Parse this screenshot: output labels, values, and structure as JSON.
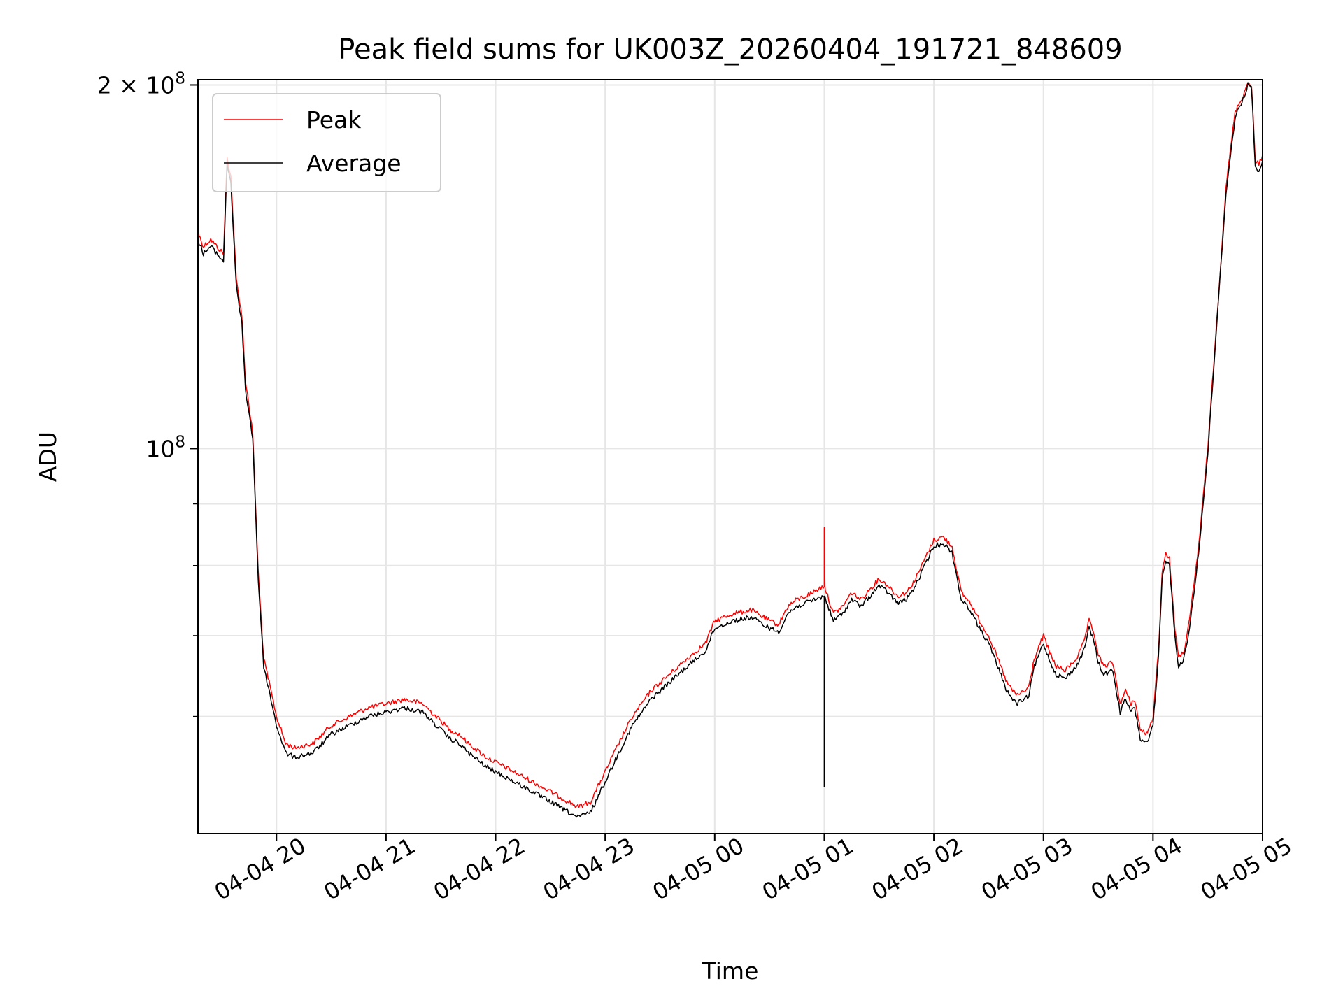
{
  "chart_data": {
    "type": "line",
    "title": "Peak field sums for UK003Z_20260404_191721_848609",
    "xlabel": "Time",
    "ylabel": "ADU",
    "yscale": "log",
    "ylim": [
      48000000,
      202000000
    ],
    "xlim": [
      "2026-04-04 19:17",
      "2026-04-05 05:00"
    ],
    "grid": true,
    "legend_position": "top-left",
    "x_ticks": [
      "04-04 20",
      "04-04 21",
      "04-04 22",
      "04-04 23",
      "04-05 00",
      "04-05 01",
      "04-05 02",
      "04-05 03",
      "04-05 04",
      "04-05 05"
    ],
    "x_tick_values": [
      "2026-04-04 20:00",
      "2026-04-04 21:00",
      "2026-04-04 22:00",
      "2026-04-04 23:00",
      "2026-04-05 00:00",
      "2026-04-05 01:00",
      "2026-04-05 02:00",
      "2026-04-05 03:00",
      "2026-04-05 04:00",
      "2026-04-05 05:00"
    ],
    "y_ticks": [
      {
        "value": 100000000,
        "base": "10",
        "exp": "8",
        "prefix": ""
      },
      {
        "value": 200000000,
        "base": "10",
        "exp": "8",
        "prefix": "2 × "
      }
    ],
    "y_minor_ticks": [
      60000000,
      70000000,
      80000000,
      90000000
    ],
    "series": [
      {
        "name": "Peak",
        "color": "#ff0000",
        "x": [
          "2026-04-04 19:17",
          "2026-04-04 19:20",
          "2026-04-04 19:24",
          "2026-04-04 19:29",
          "2026-04-04 19:31",
          "2026-04-04 19:33",
          "2026-04-04 19:35",
          "2026-04-04 19:38",
          "2026-04-04 19:41",
          "2026-04-04 19:43",
          "2026-04-04 19:47",
          "2026-04-04 19:50",
          "2026-04-04 19:53",
          "2026-04-04 19:56",
          "2026-04-04 20:00",
          "2026-04-04 20:05",
          "2026-04-04 20:10",
          "2026-04-04 20:20",
          "2026-04-04 20:30",
          "2026-04-04 20:35",
          "2026-04-04 20:40",
          "2026-04-04 20:50",
          "2026-04-04 21:00",
          "2026-04-04 21:10",
          "2026-04-04 21:20",
          "2026-04-04 21:30",
          "2026-04-04 21:35",
          "2026-04-04 21:40",
          "2026-04-04 21:45",
          "2026-04-04 21:55",
          "2026-04-04 22:05",
          "2026-04-04 22:15",
          "2026-04-04 22:25",
          "2026-04-04 22:35",
          "2026-04-04 22:45",
          "2026-04-04 22:52",
          "2026-04-04 23:00",
          "2026-04-04 23:05",
          "2026-04-04 23:10",
          "2026-04-04 23:15",
          "2026-04-04 23:25",
          "2026-04-04 23:35",
          "2026-04-04 23:45",
          "2026-04-04 23:55",
          "2026-04-05 00:00",
          "2026-04-05 00:10",
          "2026-04-05 00:20",
          "2026-04-05 00:30",
          "2026-04-05 00:35",
          "2026-04-05 00:40",
          "2026-04-05 00:45",
          "2026-04-05 00:50",
          "2026-04-05 01:00",
          "2026-04-05 01:05",
          "2026-04-05 01:10",
          "2026-04-05 01:15",
          "2026-04-05 01:20",
          "2026-04-05 01:25",
          "2026-04-05 01:30",
          "2026-04-05 01:35",
          "2026-04-05 01:40",
          "2026-04-05 01:45",
          "2026-04-05 01:50",
          "2026-04-05 01:55",
          "2026-04-05 02:00",
          "2026-04-05 02:05",
          "2026-04-05 02:10",
          "2026-04-05 02:15",
          "2026-04-05 02:20",
          "2026-04-05 02:25",
          "2026-04-05 02:30",
          "2026-04-05 02:35",
          "2026-04-05 02:40",
          "2026-04-05 02:45",
          "2026-04-05 02:50",
          "2026-04-05 02:52",
          "2026-04-05 02:55",
          "2026-04-05 03:00",
          "2026-04-05 03:03",
          "2026-04-05 03:07",
          "2026-04-05 03:12",
          "2026-04-05 03:18",
          "2026-04-05 03:22",
          "2026-04-05 03:25",
          "2026-04-05 03:28",
          "2026-04-05 03:30",
          "2026-04-05 03:33",
          "2026-04-05 03:38",
          "2026-04-05 03:40",
          "2026-04-05 03:42",
          "2026-04-05 03:45",
          "2026-04-05 03:48",
          "2026-04-05 03:50",
          "2026-04-05 03:53",
          "2026-04-05 03:57",
          "2026-04-05 04:00",
          "2026-04-05 04:03",
          "2026-04-05 04:05",
          "2026-04-05 04:07",
          "2026-04-05 04:09",
          "2026-04-05 04:12",
          "2026-04-05 04:14",
          "2026-04-05 04:17",
          "2026-04-05 04:20",
          "2026-04-05 04:25",
          "2026-04-05 04:30",
          "2026-04-05 04:35",
          "2026-04-05 04:40",
          "2026-04-05 04:45",
          "2026-04-05 04:50",
          "2026-04-05 04:52",
          "2026-04-05 04:54",
          "2026-04-05 04:56",
          "2026-04-05 04:58",
          "2026-04-05 05:00"
        ],
        "y": [
          151000000,
          147000000,
          149000000,
          146000000,
          145000000,
          174000000,
          168000000,
          138000000,
          129000000,
          114000000,
          103000000,
          79000000,
          67000000,
          64000000,
          60000000,
          57000000,
          56500000,
          57000000,
          59000000,
          59500000,
          60000000,
          61000000,
          61500000,
          62000000,
          61500000,
          59500000,
          58500000,
          58000000,
          57000000,
          55500000,
          54500000,
          53500000,
          52500000,
          51500000,
          50500000,
          51000000,
          54000000,
          56000000,
          58000000,
          60000000,
          63000000,
          65000000,
          67000000,
          69000000,
          72000000,
          73000000,
          73500000,
          72000000,
          71500000,
          74000000,
          75000000,
          75500000,
          77000000,
          73000000,
          74000000,
          76000000,
          75000000,
          76500000,
          78000000,
          77000000,
          75500000,
          76000000,
          78000000,
          81000000,
          84000000,
          84500000,
          83000000,
          76000000,
          74500000,
          72000000,
          70000000,
          67000000,
          64000000,
          62500000,
          63000000,
          63500000,
          67000000,
          70000000,
          68000000,
          66000000,
          65500000,
          67000000,
          69000000,
          72000000,
          70000000,
          67500000,
          66000000,
          66500000,
          64000000,
          61500000,
          63000000,
          61500000,
          62000000,
          58500000,
          58000000,
          60000000,
          68000000,
          79000000,
          82000000,
          81000000,
          71000000,
          67000000,
          68000000,
          72000000,
          83000000,
          100000000,
          128000000,
          165000000,
          190000000,
          197000000,
          201000000,
          200000000,
          173000000,
          172000000,
          175000000
        ]
      },
      {
        "name": "Average",
        "color": "#000000",
        "x": [
          "2026-04-04 19:17",
          "2026-04-04 19:20",
          "2026-04-04 19:24",
          "2026-04-04 19:29",
          "2026-04-04 19:31",
          "2026-04-04 19:33",
          "2026-04-04 19:35",
          "2026-04-04 19:38",
          "2026-04-04 19:41",
          "2026-04-04 19:43",
          "2026-04-04 19:47",
          "2026-04-04 19:50",
          "2026-04-04 19:53",
          "2026-04-04 19:56",
          "2026-04-04 20:00",
          "2026-04-04 20:05",
          "2026-04-04 20:10",
          "2026-04-04 20:20",
          "2026-04-04 20:30",
          "2026-04-04 20:35",
          "2026-04-04 20:40",
          "2026-04-04 20:50",
          "2026-04-04 21:00",
          "2026-04-04 21:10",
          "2026-04-04 21:20",
          "2026-04-04 21:30",
          "2026-04-04 21:35",
          "2026-04-04 21:40",
          "2026-04-04 21:45",
          "2026-04-04 21:55",
          "2026-04-04 22:05",
          "2026-04-04 22:15",
          "2026-04-04 22:25",
          "2026-04-04 22:35",
          "2026-04-04 22:45",
          "2026-04-04 22:52",
          "2026-04-04 23:00",
          "2026-04-04 23:05",
          "2026-04-04 23:10",
          "2026-04-04 23:15",
          "2026-04-04 23:25",
          "2026-04-04 23:35",
          "2026-04-04 23:45",
          "2026-04-04 23:55",
          "2026-04-05 00:00",
          "2026-04-05 00:10",
          "2026-04-05 00:20",
          "2026-04-05 00:30",
          "2026-04-05 00:35",
          "2026-04-05 00:40",
          "2026-04-05 00:45",
          "2026-04-05 00:50",
          "2026-04-05 01:00",
          "2026-04-05 01:05",
          "2026-04-05 01:10",
          "2026-04-05 01:15",
          "2026-04-05 01:20",
          "2026-04-05 01:25",
          "2026-04-05 01:30",
          "2026-04-05 01:35",
          "2026-04-05 01:40",
          "2026-04-05 01:45",
          "2026-04-05 01:50",
          "2026-04-05 01:55",
          "2026-04-05 02:00",
          "2026-04-05 02:05",
          "2026-04-05 02:10",
          "2026-04-05 02:15",
          "2026-04-05 02:20",
          "2026-04-05 02:25",
          "2026-04-05 02:30",
          "2026-04-05 02:35",
          "2026-04-05 02:40",
          "2026-04-05 02:45",
          "2026-04-05 02:50",
          "2026-04-05 02:52",
          "2026-04-05 02:55",
          "2026-04-05 03:00",
          "2026-04-05 03:03",
          "2026-04-05 03:07",
          "2026-04-05 03:12",
          "2026-04-05 03:18",
          "2026-04-05 03:22",
          "2026-04-05 03:25",
          "2026-04-05 03:28",
          "2026-04-05 03:30",
          "2026-04-05 03:33",
          "2026-04-05 03:38",
          "2026-04-05 03:40",
          "2026-04-05 03:42",
          "2026-04-05 03:45",
          "2026-04-05 03:48",
          "2026-04-05 03:50",
          "2026-04-05 03:53",
          "2026-04-05 03:57",
          "2026-04-05 04:00",
          "2026-04-05 04:03",
          "2026-04-05 04:05",
          "2026-04-05 04:07",
          "2026-04-05 04:09",
          "2026-04-05 04:12",
          "2026-04-05 04:14",
          "2026-04-05 04:17",
          "2026-04-05 04:20",
          "2026-04-05 04:25",
          "2026-04-05 04:30",
          "2026-04-05 04:35",
          "2026-04-05 04:40",
          "2026-04-05 04:45",
          "2026-04-05 04:50",
          "2026-04-05 04:52",
          "2026-04-05 04:54",
          "2026-04-05 04:56",
          "2026-04-05 04:58",
          "2026-04-05 05:00"
        ],
        "y": [
          149000000,
          145000000,
          147000000,
          144000000,
          143000000,
          172000000,
          166000000,
          136000000,
          127000000,
          112000000,
          102000000,
          78000000,
          66000000,
          63000000,
          59000000,
          56000000,
          55500000,
          56000000,
          58000000,
          58500000,
          59000000,
          60000000,
          60500000,
          61000000,
          60500000,
          58500000,
          57500000,
          57000000,
          56000000,
          54500000,
          53500000,
          52500000,
          51500000,
          50500000,
          49500000,
          50000000,
          53000000,
          55000000,
          57000000,
          59000000,
          62000000,
          64000000,
          66000000,
          68000000,
          71000000,
          72000000,
          72500000,
          71000000,
          70500000,
          73000000,
          74000000,
          74500000,
          75500000,
          72000000,
          73000000,
          75000000,
          74000000,
          75500000,
          77000000,
          76000000,
          74500000,
          75000000,
          77000000,
          80000000,
          83000000,
          83500000,
          82000000,
          75000000,
          73500000,
          71000000,
          69000000,
          66000000,
          63000000,
          61500000,
          62000000,
          62500000,
          66000000,
          69000000,
          67000000,
          65000000,
          64500000,
          66000000,
          68000000,
          71000000,
          69000000,
          66500000,
          65000000,
          65500000,
          63000000,
          60500000,
          62000000,
          60500000,
          61000000,
          57500000,
          57000000,
          59000000,
          67000000,
          78000000,
          81000000,
          80000000,
          70000000,
          66000000,
          67000000,
          71000000,
          82000000,
          99000000,
          127000000,
          163000000,
          188000000,
          196000000,
          200000000,
          199000000,
          171000000,
          170000000,
          173000000
        ]
      }
    ],
    "annotations": [
      {
        "series": "Peak",
        "x": "2026-04-05 01:00",
        "y": 86000000,
        "kind": "spike"
      },
      {
        "series": "Average",
        "x": "2026-04-05 01:00",
        "y": 52500000,
        "kind": "dip"
      }
    ]
  }
}
